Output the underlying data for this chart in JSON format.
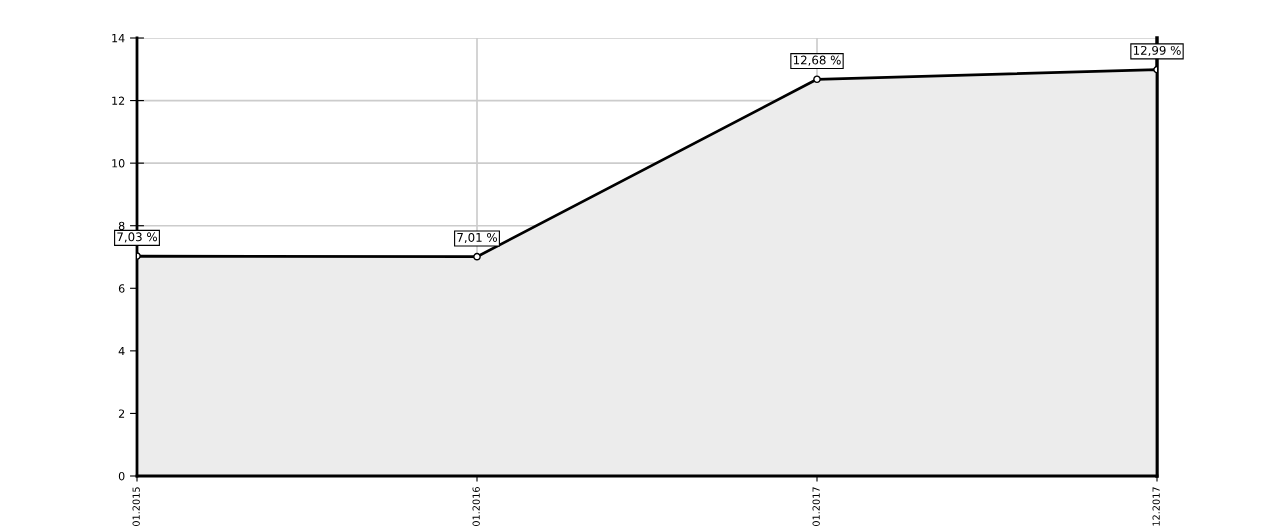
{
  "chart_data": {
    "type": "area",
    "categories": [
      "01.2015",
      "01.2016",
      "01.2017",
      "12.2017"
    ],
    "values": [
      7.03,
      7.01,
      12.68,
      12.99
    ],
    "value_labels": [
      "7,03 %",
      "7,01 %",
      "12,68 %",
      "12,99 %"
    ],
    "color": "#000000",
    "ylim": [
      0,
      14
    ],
    "yticks": [
      0,
      2,
      4,
      6,
      8,
      10,
      12,
      14
    ],
    "grid": true,
    "marker": "circle"
  }
}
